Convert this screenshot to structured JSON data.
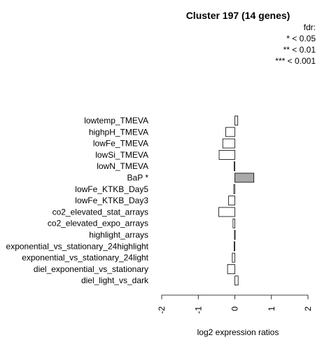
{
  "chart_data": {
    "type": "bar",
    "orientation": "horizontal",
    "title": "Cluster 197 (14 genes)",
    "xlabel": "log2 expression ratios",
    "ylabel": "",
    "xlim": [
      -2,
      2
    ],
    "x_ticks": [
      "-2",
      "-1",
      "0",
      "1",
      "2"
    ],
    "legend": {
      "title": "fdr:",
      "entries": [
        "* < 0.05",
        "** < 0.01",
        "*** < 0.001"
      ],
      "placement": "top-right"
    },
    "categories": [
      "lowtemp_TMEVA",
      "highpH_TMEVA",
      "lowFe_TMEVA",
      "lowSi_TMEVA",
      "lowN_TMEVA",
      "BaP *",
      "lowFe_KTKB_Day5",
      "lowFe_KTKB_Day3",
      "co2_elevated_stat_arrays",
      "co2_elevated_expo_arrays",
      "highlight_arrays",
      "exponential_vs_stationary_24highlight",
      "exponential_vs_stationary_24light",
      "diel_exponential_vs_stationary",
      "diel_light_vs_dark"
    ],
    "values": [
      0.08,
      -0.25,
      -0.33,
      -0.43,
      -0.02,
      0.52,
      -0.03,
      -0.17,
      -0.44,
      -0.05,
      -0.01,
      -0.02,
      -0.07,
      -0.2,
      0.09
    ],
    "significant": [
      false,
      false,
      false,
      false,
      false,
      true,
      false,
      false,
      false,
      false,
      false,
      false,
      false,
      false,
      false
    ],
    "colors": {
      "bar": "#ffffff",
      "significant_bar": "#a9a9a9",
      "stroke": "#000000"
    }
  }
}
